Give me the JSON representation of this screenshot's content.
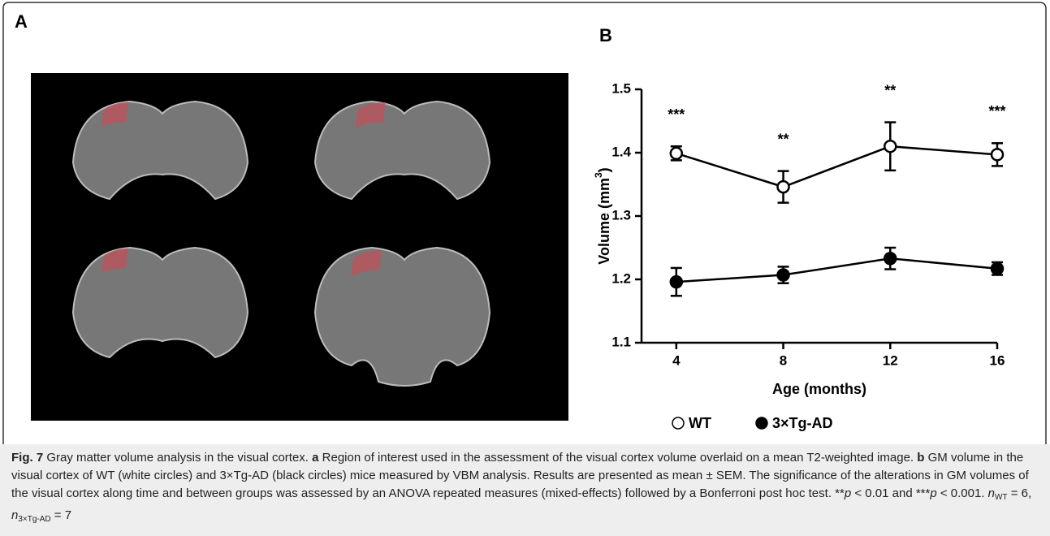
{
  "panel_labels": [
    "A",
    "B"
  ],
  "chart_data": {
    "type": "line",
    "ylabel": [
      "Volume (mm",
      "3",
      ")"
    ],
    "xlabel": "Age (months)",
    "x": [
      4,
      8,
      12,
      16
    ],
    "xlim": [
      2.7,
      16
    ],
    "xticks": [
      4,
      8,
      12,
      16
    ],
    "ylim": [
      1.1,
      1.5
    ],
    "yticks": [
      1.1,
      1.2,
      1.3,
      1.4,
      1.5
    ],
    "series": [
      {
        "name": "WT",
        "color": "#000000",
        "filled": false,
        "values": [
          1.399,
          1.346,
          1.41,
          1.397
        ],
        "errors": [
          0.011,
          0.025,
          0.038,
          0.018
        ]
      },
      {
        "name": "3×Tg-AD",
        "color": "#000000",
        "filled": true,
        "values": [
          1.196,
          1.207,
          1.233,
          1.217
        ],
        "errors": [
          0.022,
          0.013,
          0.017,
          0.01
        ]
      }
    ],
    "annotations": [
      {
        "x": 4,
        "text": "***"
      },
      {
        "x": 8,
        "text": "**"
      },
      {
        "x": 12,
        "text": "**"
      },
      {
        "x": 16,
        "text": "***"
      }
    ]
  },
  "caption": [
    "Fig. 7",
    " Gray matter volume analysis in the visual cortex. ",
    "a",
    " Region of interest used in the assessment of the visual cortex volume overlaid on a mean T2-weighted image. ",
    "b",
    " GM volume in the visual cortex of WT (white circles) and 3×Tg-AD (black circles) mice measured by VBM analysis. Results are presented as mean ± SEM. The significance of the alterations in GM volumes of the visual cortex along time and between groups was assessed by an ANOVA repeated measures (mixed-effects) followed by a Bonferroni post hoc test. **",
    "p",
    " < 0.01 and ***",
    "p",
    " < 0.001. ",
    "n",
    "WT",
    " = 6, ",
    "n",
    "3×Tg-AD",
    " = 7"
  ]
}
